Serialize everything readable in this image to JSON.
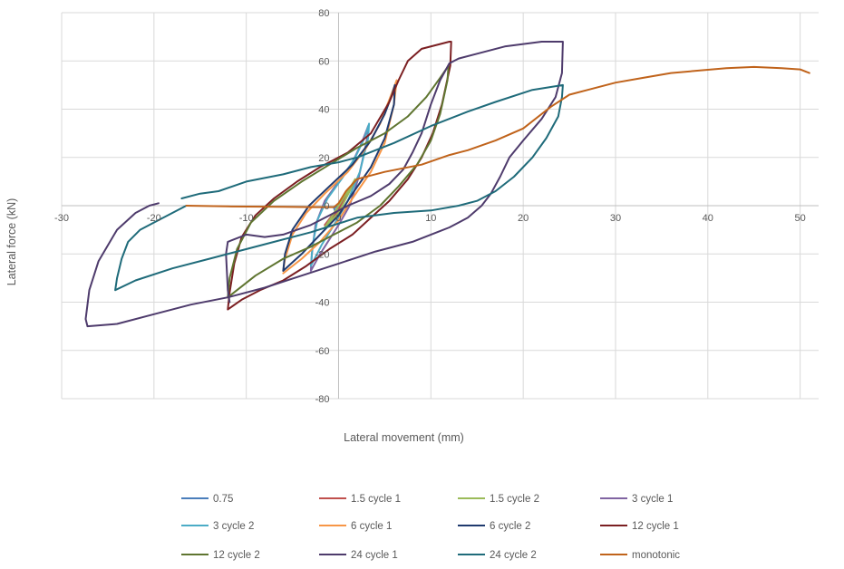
{
  "chart_data": {
    "type": "line",
    "title": "",
    "xlabel": "Lateral movement (mm)",
    "ylabel": "Lateral force (kN)",
    "xlim": [
      -30,
      52
    ],
    "ylim": [
      -80,
      80
    ],
    "x_ticks": [
      -30,
      -20,
      -10,
      0,
      10,
      20,
      30,
      40,
      50
    ],
    "y_ticks": [
      -80,
      -60,
      -40,
      -20,
      0,
      20,
      40,
      60,
      80
    ],
    "grid": "vertical and horizontal major gridlines",
    "legend_position": "bottom",
    "series": [
      {
        "name": "0.75",
        "color": "#4a7ebb",
        "points": [
          [
            -0.5,
            -1
          ],
          [
            0,
            0
          ],
          [
            0.5,
            3
          ],
          [
            0.7,
            5
          ],
          [
            0.5,
            3
          ],
          [
            0,
            -1
          ],
          [
            -0.4,
            -2
          ],
          [
            -0.5,
            -1
          ]
        ]
      },
      {
        "name": "1.5 cycle 1",
        "color": "#c0504d",
        "points": [
          [
            -1.5,
            -8
          ],
          [
            -0.5,
            -3
          ],
          [
            0.5,
            2
          ],
          [
            1.5,
            8
          ],
          [
            1.7,
            10
          ],
          [
            1.2,
            6
          ],
          [
            0,
            -2
          ],
          [
            -1,
            -6
          ],
          [
            -1.5,
            -8
          ]
        ]
      },
      {
        "name": "1.5 cycle 2",
        "color": "#9bbb59",
        "points": [
          [
            -1.5,
            -9
          ],
          [
            -0.8,
            -5
          ],
          [
            0,
            0
          ],
          [
            1,
            6
          ],
          [
            1.8,
            11
          ],
          [
            1.2,
            6
          ],
          [
            0,
            -3
          ],
          [
            -1,
            -7
          ],
          [
            -1.5,
            -9
          ]
        ]
      },
      {
        "name": "3 cycle 1",
        "color": "#8064a2",
        "points": [
          [
            -3,
            -27
          ],
          [
            -2.9,
            -20
          ],
          [
            -2.5,
            -8
          ],
          [
            -1.5,
            2
          ],
          [
            0,
            10
          ],
          [
            1.5,
            18
          ],
          [
            2.5,
            26
          ],
          [
            3.1,
            32
          ],
          [
            3.2,
            33
          ],
          [
            3.1,
            28
          ],
          [
            2.2,
            12
          ],
          [
            1.2,
            0
          ],
          [
            0,
            -8
          ],
          [
            -1,
            -14
          ],
          [
            -2,
            -20
          ],
          [
            -3,
            -27
          ]
        ]
      },
      {
        "name": "3 cycle 2",
        "color": "#4bacc6",
        "points": [
          [
            -3,
            -25
          ],
          [
            -2.8,
            -16
          ],
          [
            -2.3,
            -6
          ],
          [
            -1.2,
            3
          ],
          [
            0.5,
            12
          ],
          [
            1.8,
            20
          ],
          [
            2.8,
            28
          ],
          [
            3.3,
            34
          ],
          [
            3.2,
            28
          ],
          [
            2.3,
            14
          ],
          [
            1,
            2
          ],
          [
            -0.5,
            -8
          ],
          [
            -1.8,
            -16
          ],
          [
            -3,
            -25
          ]
        ]
      },
      {
        "name": "6 cycle 1",
        "color": "#f79646",
        "points": [
          [
            -6,
            -27
          ],
          [
            -5.8,
            -22
          ],
          [
            -5,
            -12
          ],
          [
            -3.5,
            -3
          ],
          [
            -1.5,
            5
          ],
          [
            1,
            14
          ],
          [
            3,
            24
          ],
          [
            4.5,
            34
          ],
          [
            5.5,
            44
          ],
          [
            6.2,
            51
          ],
          [
            6.3,
            52
          ],
          [
            6,
            42
          ],
          [
            5,
            26
          ],
          [
            3.5,
            14
          ],
          [
            1.5,
            3
          ],
          [
            0,
            -6
          ],
          [
            -2,
            -15
          ],
          [
            -4,
            -22
          ],
          [
            -6,
            -28
          ]
        ]
      },
      {
        "name": "6 cycle 2",
        "color": "#1f3a6e",
        "points": [
          [
            -6,
            -27
          ],
          [
            -5.8,
            -20
          ],
          [
            -5,
            -10
          ],
          [
            -3.2,
            0
          ],
          [
            -1,
            8
          ],
          [
            1.5,
            17
          ],
          [
            3.5,
            27
          ],
          [
            5,
            38
          ],
          [
            5.8,
            46
          ],
          [
            6.1,
            50
          ],
          [
            6,
            42
          ],
          [
            5,
            28
          ],
          [
            3.5,
            16
          ],
          [
            1.5,
            5
          ],
          [
            0,
            -4
          ],
          [
            -2,
            -12
          ],
          [
            -4,
            -20
          ],
          [
            -6,
            -27
          ]
        ]
      },
      {
        "name": "12 cycle 1",
        "color": "#7b1f22",
        "points": [
          [
            -12,
            -43
          ],
          [
            -11.8,
            -36
          ],
          [
            -11.3,
            -24
          ],
          [
            -10.5,
            -13
          ],
          [
            -9,
            -4
          ],
          [
            -7,
            3
          ],
          [
            -4.5,
            10
          ],
          [
            -2,
            16
          ],
          [
            1,
            22
          ],
          [
            3.5,
            30
          ],
          [
            5.5,
            43
          ],
          [
            6.5,
            52
          ],
          [
            7.5,
            60
          ],
          [
            9,
            65
          ],
          [
            11,
            67
          ],
          [
            12,
            68
          ],
          [
            12.2,
            68
          ],
          [
            12.1,
            58
          ],
          [
            11.2,
            42
          ],
          [
            10.2,
            30
          ],
          [
            9,
            20
          ],
          [
            7.5,
            11
          ],
          [
            5.5,
            2
          ],
          [
            3.5,
            -5
          ],
          [
            1.5,
            -12
          ],
          [
            -1,
            -18
          ],
          [
            -3.5,
            -25
          ],
          [
            -6,
            -31
          ],
          [
            -8.5,
            -35
          ],
          [
            -10.5,
            -39
          ],
          [
            -12,
            -43
          ]
        ]
      },
      {
        "name": "12 cycle 2",
        "color": "#5f7530",
        "points": [
          [
            -12,
            -38
          ],
          [
            -11.8,
            -30
          ],
          [
            -11,
            -18
          ],
          [
            -9.5,
            -7
          ],
          [
            -7,
            2
          ],
          [
            -4,
            10
          ],
          [
            -1,
            17
          ],
          [
            2,
            24
          ],
          [
            5,
            30
          ],
          [
            7.5,
            37
          ],
          [
            9.5,
            45
          ],
          [
            11,
            53
          ],
          [
            11.9,
            58
          ],
          [
            11.8,
            52
          ],
          [
            11,
            38
          ],
          [
            10,
            27
          ],
          [
            8.5,
            17
          ],
          [
            6.5,
            8
          ],
          [
            4.5,
            0
          ],
          [
            2,
            -7
          ],
          [
            -0.5,
            -12
          ],
          [
            -3,
            -17
          ],
          [
            -6,
            -22
          ],
          [
            -9,
            -29
          ],
          [
            -12,
            -38
          ]
        ]
      },
      {
        "name": "24 cycle 1",
        "color": "#4e3b6c",
        "points": [
          [
            -19.5,
            1
          ],
          [
            -20.5,
            0
          ],
          [
            -22,
            -3
          ],
          [
            -24,
            -10
          ],
          [
            -26,
            -23
          ],
          [
            -27,
            -35
          ],
          [
            -27.4,
            -47
          ],
          [
            -27.2,
            -50
          ],
          [
            -24,
            -49
          ],
          [
            -20,
            -45
          ],
          [
            -16,
            -41
          ],
          [
            -12,
            -38
          ],
          [
            -8,
            -34
          ],
          [
            -4,
            -29
          ],
          [
            0,
            -24
          ],
          [
            4,
            -19
          ],
          [
            8,
            -15
          ],
          [
            12,
            -9
          ],
          [
            14,
            -5
          ],
          [
            15.5,
            0
          ],
          [
            16.5,
            5
          ],
          [
            17.5,
            12
          ],
          [
            18.5,
            20
          ],
          [
            20,
            27
          ],
          [
            22,
            36
          ],
          [
            23.5,
            45
          ],
          [
            24.2,
            55
          ],
          [
            24.3,
            68
          ],
          [
            22,
            68
          ],
          [
            18,
            66
          ],
          [
            15,
            63
          ],
          [
            13,
            61
          ],
          [
            12,
            59
          ],
          [
            11,
            52
          ],
          [
            10,
            42
          ],
          [
            9,
            30
          ],
          [
            8,
            22
          ],
          [
            7,
            15
          ],
          [
            5.5,
            9
          ],
          [
            3.5,
            4
          ],
          [
            1,
            0
          ],
          [
            -1,
            -4
          ],
          [
            -3,
            -8
          ],
          [
            -6,
            -12
          ],
          [
            -8,
            -13
          ],
          [
            -10,
            -12
          ],
          [
            -12,
            -15
          ],
          [
            -12.2,
            -20
          ],
          [
            -12,
            -35
          ],
          [
            -11.8,
            -40
          ]
        ]
      },
      {
        "name": "24 cycle 2",
        "color": "#1f6b7a",
        "points": [
          [
            -16.5,
            0
          ],
          [
            -20,
            -7
          ],
          [
            -21.5,
            -10
          ],
          [
            -22.8,
            -15
          ],
          [
            -23.5,
            -22
          ],
          [
            -24,
            -30
          ],
          [
            -24.2,
            -35
          ],
          [
            -22,
            -31
          ],
          [
            -18,
            -26
          ],
          [
            -14,
            -22
          ],
          [
            -8,
            -16
          ],
          [
            -3,
            -11
          ],
          [
            2,
            -5
          ],
          [
            6,
            -3
          ],
          [
            10,
            -2
          ],
          [
            13,
            0
          ],
          [
            15,
            2
          ],
          [
            17,
            6
          ],
          [
            19,
            12
          ],
          [
            21,
            20
          ],
          [
            22.5,
            28
          ],
          [
            23.8,
            37
          ],
          [
            24.2,
            45
          ],
          [
            24.3,
            50
          ],
          [
            21,
            48
          ],
          [
            17,
            43
          ],
          [
            14,
            39
          ],
          [
            10,
            33
          ],
          [
            6,
            26
          ],
          [
            2,
            20
          ],
          [
            0,
            18
          ],
          [
            -3,
            16
          ],
          [
            -6,
            13
          ],
          [
            -10,
            10
          ],
          [
            -13,
            6
          ],
          [
            -15,
            5
          ],
          [
            -17,
            3
          ]
        ]
      },
      {
        "name": "monotonic",
        "color": "#c0631b",
        "points": [
          [
            -16.5,
            0
          ],
          [
            -12,
            -0.3
          ],
          [
            -6,
            -0.5
          ],
          [
            -3,
            -0.6
          ],
          [
            -0.5,
            -0.6
          ],
          [
            0,
            1
          ],
          [
            0.8,
            6
          ],
          [
            2,
            11
          ],
          [
            5,
            14
          ],
          [
            9,
            17
          ],
          [
            12,
            21
          ],
          [
            14,
            23
          ],
          [
            17,
            27
          ],
          [
            20,
            32
          ],
          [
            23,
            41
          ],
          [
            25,
            46
          ],
          [
            27,
            48
          ],
          [
            30,
            51
          ],
          [
            33,
            53
          ],
          [
            36,
            55
          ],
          [
            39,
            56
          ],
          [
            42,
            57
          ],
          [
            45,
            57.5
          ],
          [
            48,
            57
          ],
          [
            50,
            56.5
          ],
          [
            51,
            55
          ]
        ]
      }
    ]
  }
}
